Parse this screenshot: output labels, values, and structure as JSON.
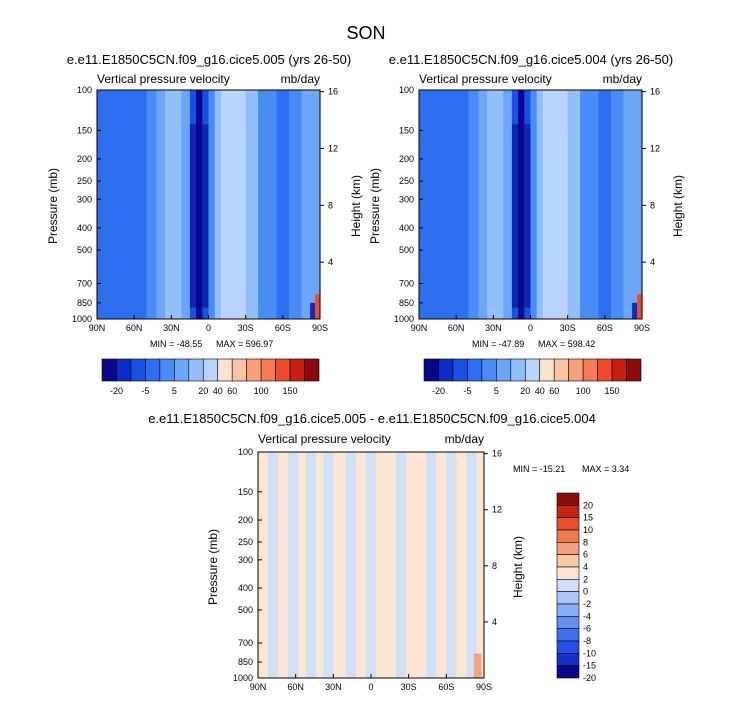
{
  "figure": {
    "title": "SON",
    "diff_title": "e.e11.E1850C5CN.f09_g16.cice5.005 - e.e11.E1850C5CN.f09_g16.cice5.004"
  },
  "colors": {
    "abs_palette": [
      "#08088a",
      "#0b2cc4",
      "#1651e4",
      "#2d6ff0",
      "#4a8bf4",
      "#6da6f7",
      "#92bff8",
      "#b8d4fa",
      "#fbe3cc",
      "#f9c4a3",
      "#f7a07c",
      "#f47a56",
      "#ec4c2c",
      "#c81e12",
      "#8a0b08"
    ],
    "diff_palette": [
      "#08088a",
      "#1230c8",
      "#1e50e8",
      "#3a70f0",
      "#6090f2",
      "#86aef4",
      "#a9c6f6",
      "#cfe0f7",
      "#fce5d2",
      "#f8c7a6",
      "#f4a27e",
      "#ef7a56",
      "#e8502f",
      "#c8250f",
      "#8a0b08"
    ]
  },
  "chart_data": [
    {
      "type": "heatmap",
      "panel": "case1",
      "title": "e.e11.E1850C5CN.f09_g16.cice5.005 (yrs 26-50)",
      "left_string": "Vertical pressure velocity",
      "right_string": "mb/day",
      "xlabel": "",
      "ylabel": "Pressure (mb)",
      "ylabel_right": "Height (km)",
      "x_ticks": [
        "90N",
        "60N",
        "30N",
        "0",
        "30S",
        "60S",
        "90S"
      ],
      "y_ticks": [
        "100",
        "150",
        "200",
        "250",
        "300",
        "400",
        "500",
        "700",
        "850",
        "1000"
      ],
      "y_ticks_right": [
        "16",
        "12",
        "8",
        "4"
      ],
      "min_label": "MIN = -48.55",
      "max_label": "MAX = 596.97",
      "colorbar_levels": [
        "-20",
        "-5",
        "5",
        "20",
        "40",
        "60",
        "100",
        "150"
      ],
      "x": [
        90,
        75,
        60,
        45,
        30,
        15,
        0,
        -15,
        -30,
        -45,
        -60,
        -75,
        -90
      ],
      "ylim": [
        1000,
        100
      ],
      "y_scale": "log",
      "latitude_profile": [
        {
          "lat": 90,
          "value": -10
        },
        {
          "lat": 80,
          "value": -12
        },
        {
          "lat": 70,
          "value": -8
        },
        {
          "lat": 60,
          "value": -12
        },
        {
          "lat": 50,
          "value": -9
        },
        {
          "lat": 42,
          "value": -4
        },
        {
          "lat": 35,
          "value": 2
        },
        {
          "lat": 28,
          "value": 5
        },
        {
          "lat": 22,
          "value": 0
        },
        {
          "lat": 15,
          "value": -5
        },
        {
          "lat": 10,
          "value": -30
        },
        {
          "lat": 5,
          "value": -25
        },
        {
          "lat": 0,
          "value": -8
        },
        {
          "lat": -5,
          "value": -2
        },
        {
          "lat": -10,
          "value": 3
        },
        {
          "lat": -20,
          "value": 8
        },
        {
          "lat": -30,
          "value": 6
        },
        {
          "lat": -40,
          "value": -4
        },
        {
          "lat": -55,
          "value": -12
        },
        {
          "lat": -65,
          "value": -8
        },
        {
          "lat": -75,
          "value": -6
        },
        {
          "lat": -85,
          "value": -3
        },
        {
          "lat": -90,
          "value": -3
        }
      ]
    },
    {
      "type": "heatmap",
      "panel": "case2",
      "title": "e.e11.E1850C5CN.f09_g16.cice5.004 (yrs 26-50)",
      "left_string": "Vertical pressure velocity",
      "right_string": "mb/day",
      "xlabel": "",
      "ylabel": "Pressure (mb)",
      "ylabel_right": "Height (km)",
      "x_ticks": [
        "90N",
        "60N",
        "30N",
        "0",
        "30S",
        "60S",
        "90S"
      ],
      "y_ticks": [
        "100",
        "150",
        "200",
        "250",
        "300",
        "400",
        "500",
        "700",
        "850",
        "1000"
      ],
      "y_ticks_right": [
        "16",
        "12",
        "8",
        "4"
      ],
      "min_label": "MIN = -47.89",
      "max_label": "MAX = 598.42",
      "colorbar_levels": [
        "-20",
        "-5",
        "5",
        "20",
        "40",
        "60",
        "100",
        "150"
      ],
      "x": [
        90,
        75,
        60,
        45,
        30,
        15,
        0,
        -15,
        -30,
        -45,
        -60,
        -75,
        -90
      ],
      "ylim": [
        1000,
        100
      ],
      "y_scale": "log",
      "latitude_profile": [
        {
          "lat": 90,
          "value": -10
        },
        {
          "lat": 80,
          "value": -12
        },
        {
          "lat": 70,
          "value": -8
        },
        {
          "lat": 60,
          "value": -12
        },
        {
          "lat": 50,
          "value": -9
        },
        {
          "lat": 42,
          "value": -4
        },
        {
          "lat": 35,
          "value": 2
        },
        {
          "lat": 28,
          "value": 5
        },
        {
          "lat": 22,
          "value": 0
        },
        {
          "lat": 15,
          "value": -5
        },
        {
          "lat": 10,
          "value": -30
        },
        {
          "lat": 5,
          "value": -25
        },
        {
          "lat": 0,
          "value": -8
        },
        {
          "lat": -5,
          "value": -2
        },
        {
          "lat": -10,
          "value": 3
        },
        {
          "lat": -20,
          "value": 8
        },
        {
          "lat": -30,
          "value": 6
        },
        {
          "lat": -40,
          "value": -4
        },
        {
          "lat": -55,
          "value": -12
        },
        {
          "lat": -65,
          "value": -8
        },
        {
          "lat": -75,
          "value": -6
        },
        {
          "lat": -85,
          "value": -3
        },
        {
          "lat": -90,
          "value": -3
        }
      ]
    },
    {
      "type": "heatmap",
      "panel": "difference",
      "left_string": "Vertical pressure velocity",
      "right_string": "mb/day",
      "xlabel": "",
      "ylabel": "Pressure (mb)",
      "ylabel_right": "Height (km)",
      "x_ticks": [
        "90N",
        "60N",
        "30N",
        "0",
        "30S",
        "60S",
        "90S"
      ],
      "y_ticks": [
        "100",
        "150",
        "200",
        "250",
        "300",
        "400",
        "500",
        "700",
        "850",
        "1000"
      ],
      "y_ticks_right": [
        "16",
        "12",
        "8",
        "4"
      ],
      "min_label": "MIN = -15.21",
      "max_label": "MAX =   3.34",
      "colorbar_levels": [
        "20",
        "15",
        "10",
        "8",
        "6",
        "4",
        "2",
        "0",
        "-2",
        "-4",
        "-6",
        "-8",
        "-10",
        "-15",
        "-20"
      ],
      "x": [
        90,
        75,
        60,
        45,
        30,
        15,
        0,
        -15,
        -30,
        -45,
        -60,
        -75,
        -90
      ],
      "ylim": [
        1000,
        100
      ],
      "y_scale": "log",
      "latitude_profile": [
        {
          "lat": 90,
          "value": 1
        },
        {
          "lat": 82,
          "value": -1
        },
        {
          "lat": 74,
          "value": 1
        },
        {
          "lat": 66,
          "value": -1
        },
        {
          "lat": 58,
          "value": 1
        },
        {
          "lat": 52,
          "value": -1
        },
        {
          "lat": 44,
          "value": 1
        },
        {
          "lat": 38,
          "value": -1
        },
        {
          "lat": 30,
          "value": 1
        },
        {
          "lat": 20,
          "value": -1
        },
        {
          "lat": 12,
          "value": 1
        },
        {
          "lat": 4,
          "value": -1
        },
        {
          "lat": -4,
          "value": 1
        },
        {
          "lat": -12,
          "value": 1
        },
        {
          "lat": -20,
          "value": -1
        },
        {
          "lat": -28,
          "value": 1
        },
        {
          "lat": -36,
          "value": 1
        },
        {
          "lat": -44,
          "value": -1
        },
        {
          "lat": -52,
          "value": 1
        },
        {
          "lat": -60,
          "value": -1
        },
        {
          "lat": -68,
          "value": 1
        },
        {
          "lat": -76,
          "value": -1
        },
        {
          "lat": -84,
          "value": 1
        },
        {
          "lat": -90,
          "value": -1
        }
      ]
    }
  ]
}
